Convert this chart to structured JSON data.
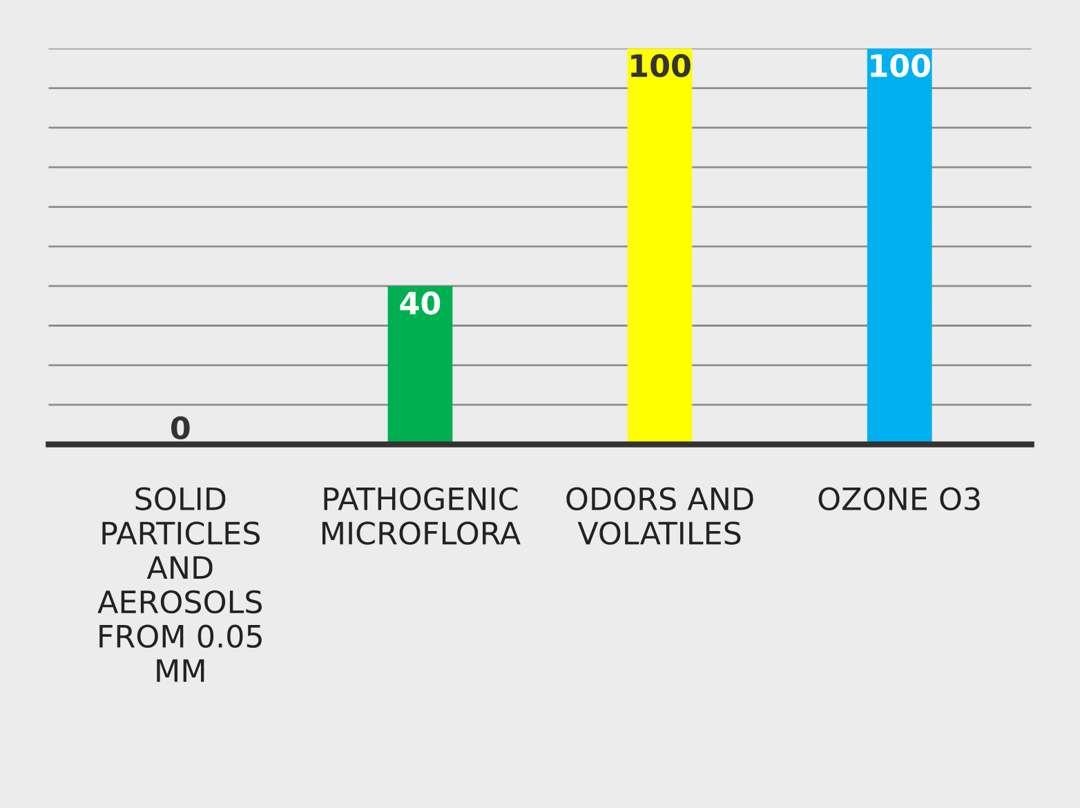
{
  "chart_data": {
    "type": "bar",
    "categories": [
      "SOLID PARTICLES AND AEROSOLS FROM 0.05 MM",
      "PATHOGENIC MICROFLORA",
      "ODORS AND VOLATILES",
      "OZONE O3"
    ],
    "values": [
      0,
      40,
      100,
      100
    ],
    "colors": [
      "#00b050",
      "#00b050",
      "#ffff00",
      "#00b0f0"
    ],
    "ylim": [
      0,
      100
    ],
    "yticks": [
      {
        "value": 10,
        "label": null
      },
      {
        "value": 20,
        "label": null
      },
      {
        "value": 30,
        "label": null
      },
      {
        "value": 40,
        "label": null
      },
      {
        "value": 50,
        "label": null
      },
      {
        "value": 60,
        "label": null
      },
      {
        "value": 70,
        "label": null
      },
      {
        "value": 80,
        "label": null
      },
      {
        "value": 90,
        "label": null
      },
      {
        "value": 100,
        "label": null
      }
    ],
    "grid": "y",
    "tick_labels": "x",
    "data_labels": true
  }
}
